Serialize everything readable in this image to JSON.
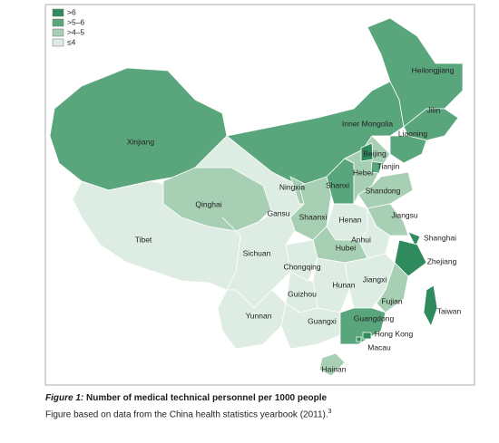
{
  "legend": [
    {
      "label": ">6",
      "color": "#2f8a5e"
    },
    {
      "label": ">5–6",
      "color": "#5aa67c"
    },
    {
      "label": ">4–5",
      "color": "#a6cfb3"
    },
    {
      "label": "≤4",
      "color": "#deede3"
    }
  ],
  "regions": [
    {
      "name": "Xinjiang",
      "category": ">5–6"
    },
    {
      "name": "Tibet",
      "category": "≤4"
    },
    {
      "name": "Qinghai",
      "category": ">4–5"
    },
    {
      "name": "Gansu",
      "category": "≤4"
    },
    {
      "name": "Inner Mongolia",
      "category": ">5–6"
    },
    {
      "name": "Heilongjiang",
      "category": ">5–6"
    },
    {
      "name": "Jilin",
      "category": ">5–6"
    },
    {
      "name": "Liaoning",
      "category": ">5–6"
    },
    {
      "name": "Ningxia",
      "category": ">4–5"
    },
    {
      "name": "Shaanxi",
      "category": ">4–5"
    },
    {
      "name": "Shanxi",
      "category": ">5–6"
    },
    {
      "name": "Hebei",
      "category": ">4–5"
    },
    {
      "name": "Beijing",
      "category": ">6"
    },
    {
      "name": "Tianjin",
      "category": ">5–6"
    },
    {
      "name": "Shandong",
      "category": ">4–5"
    },
    {
      "name": "Henan",
      "category": "≤4"
    },
    {
      "name": "Jiangsu",
      "category": ">4–5"
    },
    {
      "name": "Anhui",
      "category": "≤4"
    },
    {
      "name": "Shanghai",
      "category": ">6"
    },
    {
      "name": "Zhejiang",
      "category": ">6"
    },
    {
      "name": "Hubei",
      "category": ">4–5"
    },
    {
      "name": "Chongqing",
      "category": "≤4"
    },
    {
      "name": "Sichuan",
      "category": "≤4"
    },
    {
      "name": "Hunan",
      "category": "≤4"
    },
    {
      "name": "Jiangxi",
      "category": "≤4"
    },
    {
      "name": "Fujian",
      "category": ">4–5"
    },
    {
      "name": "Guizhou",
      "category": "≤4"
    },
    {
      "name": "Yunnan",
      "category": "≤4"
    },
    {
      "name": "Guangxi",
      "category": "≤4"
    },
    {
      "name": "Guangdong",
      "category": ">5–6"
    },
    {
      "name": "Hainan",
      "category": ">4–5"
    },
    {
      "name": "Taiwan",
      "category": ">6"
    },
    {
      "name": "Hong Kong",
      "category": ">6"
    },
    {
      "name": "Macau",
      "category": ">6"
    }
  ],
  "caption": {
    "label": "Figure 1:",
    "title": "Number of medical technical personnel per 1000 people",
    "note": "Figure based on data from the China health statistics yearbook (2011).",
    "ref": "3"
  }
}
